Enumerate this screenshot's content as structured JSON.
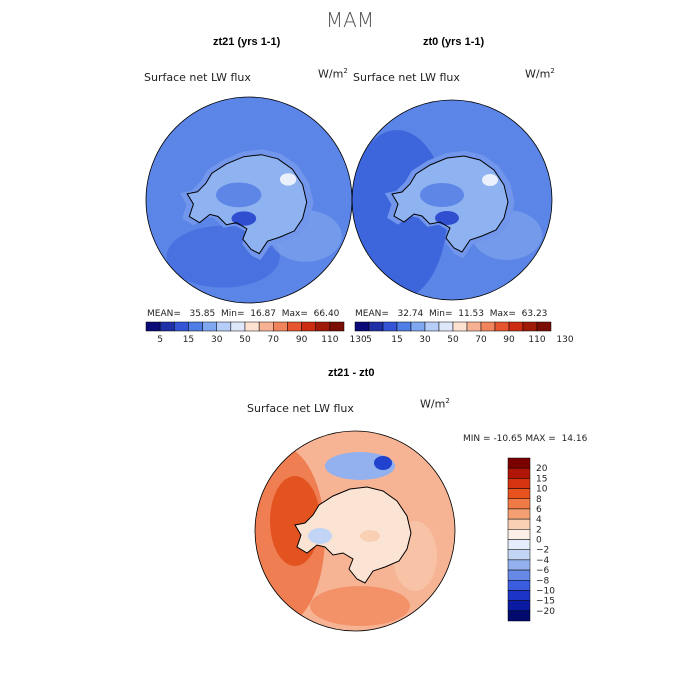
{
  "season": "MAM",
  "chart_data": [
    {
      "type": "heatmap",
      "title": "zt21 (yrs 1-1)",
      "variable": "Surface net LW flux",
      "units": "W/m",
      "units_exp": "2",
      "projection": "south polar stereographic",
      "stats": {
        "mean_label": "MEAN=",
        "mean": "35.85",
        "min_label": "Min=",
        "min": "16.87",
        "max_label": "Max=",
        "max": "66.40"
      },
      "colorbar_levels": [
        5,
        15,
        30,
        50,
        70,
        90,
        110,
        130
      ],
      "colorbar_labels": [
        "5",
        "15",
        "30",
        "50",
        "70",
        "90",
        "110",
        "130"
      ]
    },
    {
      "type": "heatmap",
      "title": "zt0 (yrs 1-1)",
      "variable": "Surface net LW flux",
      "units": "W/m",
      "units_exp": "2",
      "projection": "south polar stereographic",
      "stats": {
        "mean_label": "MEAN=",
        "mean": "32.74",
        "min_label": "Min=",
        "min": "11.53",
        "max_label": "Max=",
        "max": "63.23"
      },
      "colorbar_levels": [
        5,
        15,
        30,
        50,
        70,
        90,
        110,
        130
      ],
      "colorbar_labels": [
        "5",
        "15",
        "30",
        "50",
        "70",
        "90",
        "110",
        "130"
      ]
    },
    {
      "type": "heatmap",
      "title": "zt21 - zt0",
      "variable": "Surface net LW flux",
      "units": "W/m",
      "units_exp": "2",
      "projection": "south polar stereographic",
      "stats": {
        "min_label": "MIN =",
        "min": "-10.65",
        "max_label": "MAX =",
        "max": "14.16"
      },
      "colorbar_labels": [
        "20",
        "15",
        "10",
        "8",
        "6",
        "4",
        "2",
        "0",
        "−2",
        "−4",
        "−6",
        "−8",
        "−10",
        "−15",
        "−20"
      ]
    }
  ],
  "colors": {
    "abs_bar": [
      "#0a0a78",
      "#1f2fa6",
      "#3355d6",
      "#4f7ee6",
      "#80a8f0",
      "#b5cdf7",
      "#dfe8fb",
      "#fde2d2",
      "#f7b294",
      "#f0845c",
      "#e5562e",
      "#cc2d12",
      "#a01a08",
      "#7a0e04"
    ],
    "diff_bar": [
      "#7a0000",
      "#b01505",
      "#d63410",
      "#e8521f",
      "#f07a45",
      "#f5a072",
      "#fad0b5",
      "#fdf0e6",
      "#e4edfb",
      "#c3d5f5",
      "#93b1ee",
      "#6689e5",
      "#3a5de0",
      "#1c35c8",
      "#0b1aa3",
      "#030a6e"
    ],
    "ocean_abs": "#5b85e6",
    "ocean_abs_alt": "#3e66dc",
    "land_abs": "#8fb2f0",
    "ocean_diff": "#f07e53",
    "land_diff": "#fce4d4"
  }
}
